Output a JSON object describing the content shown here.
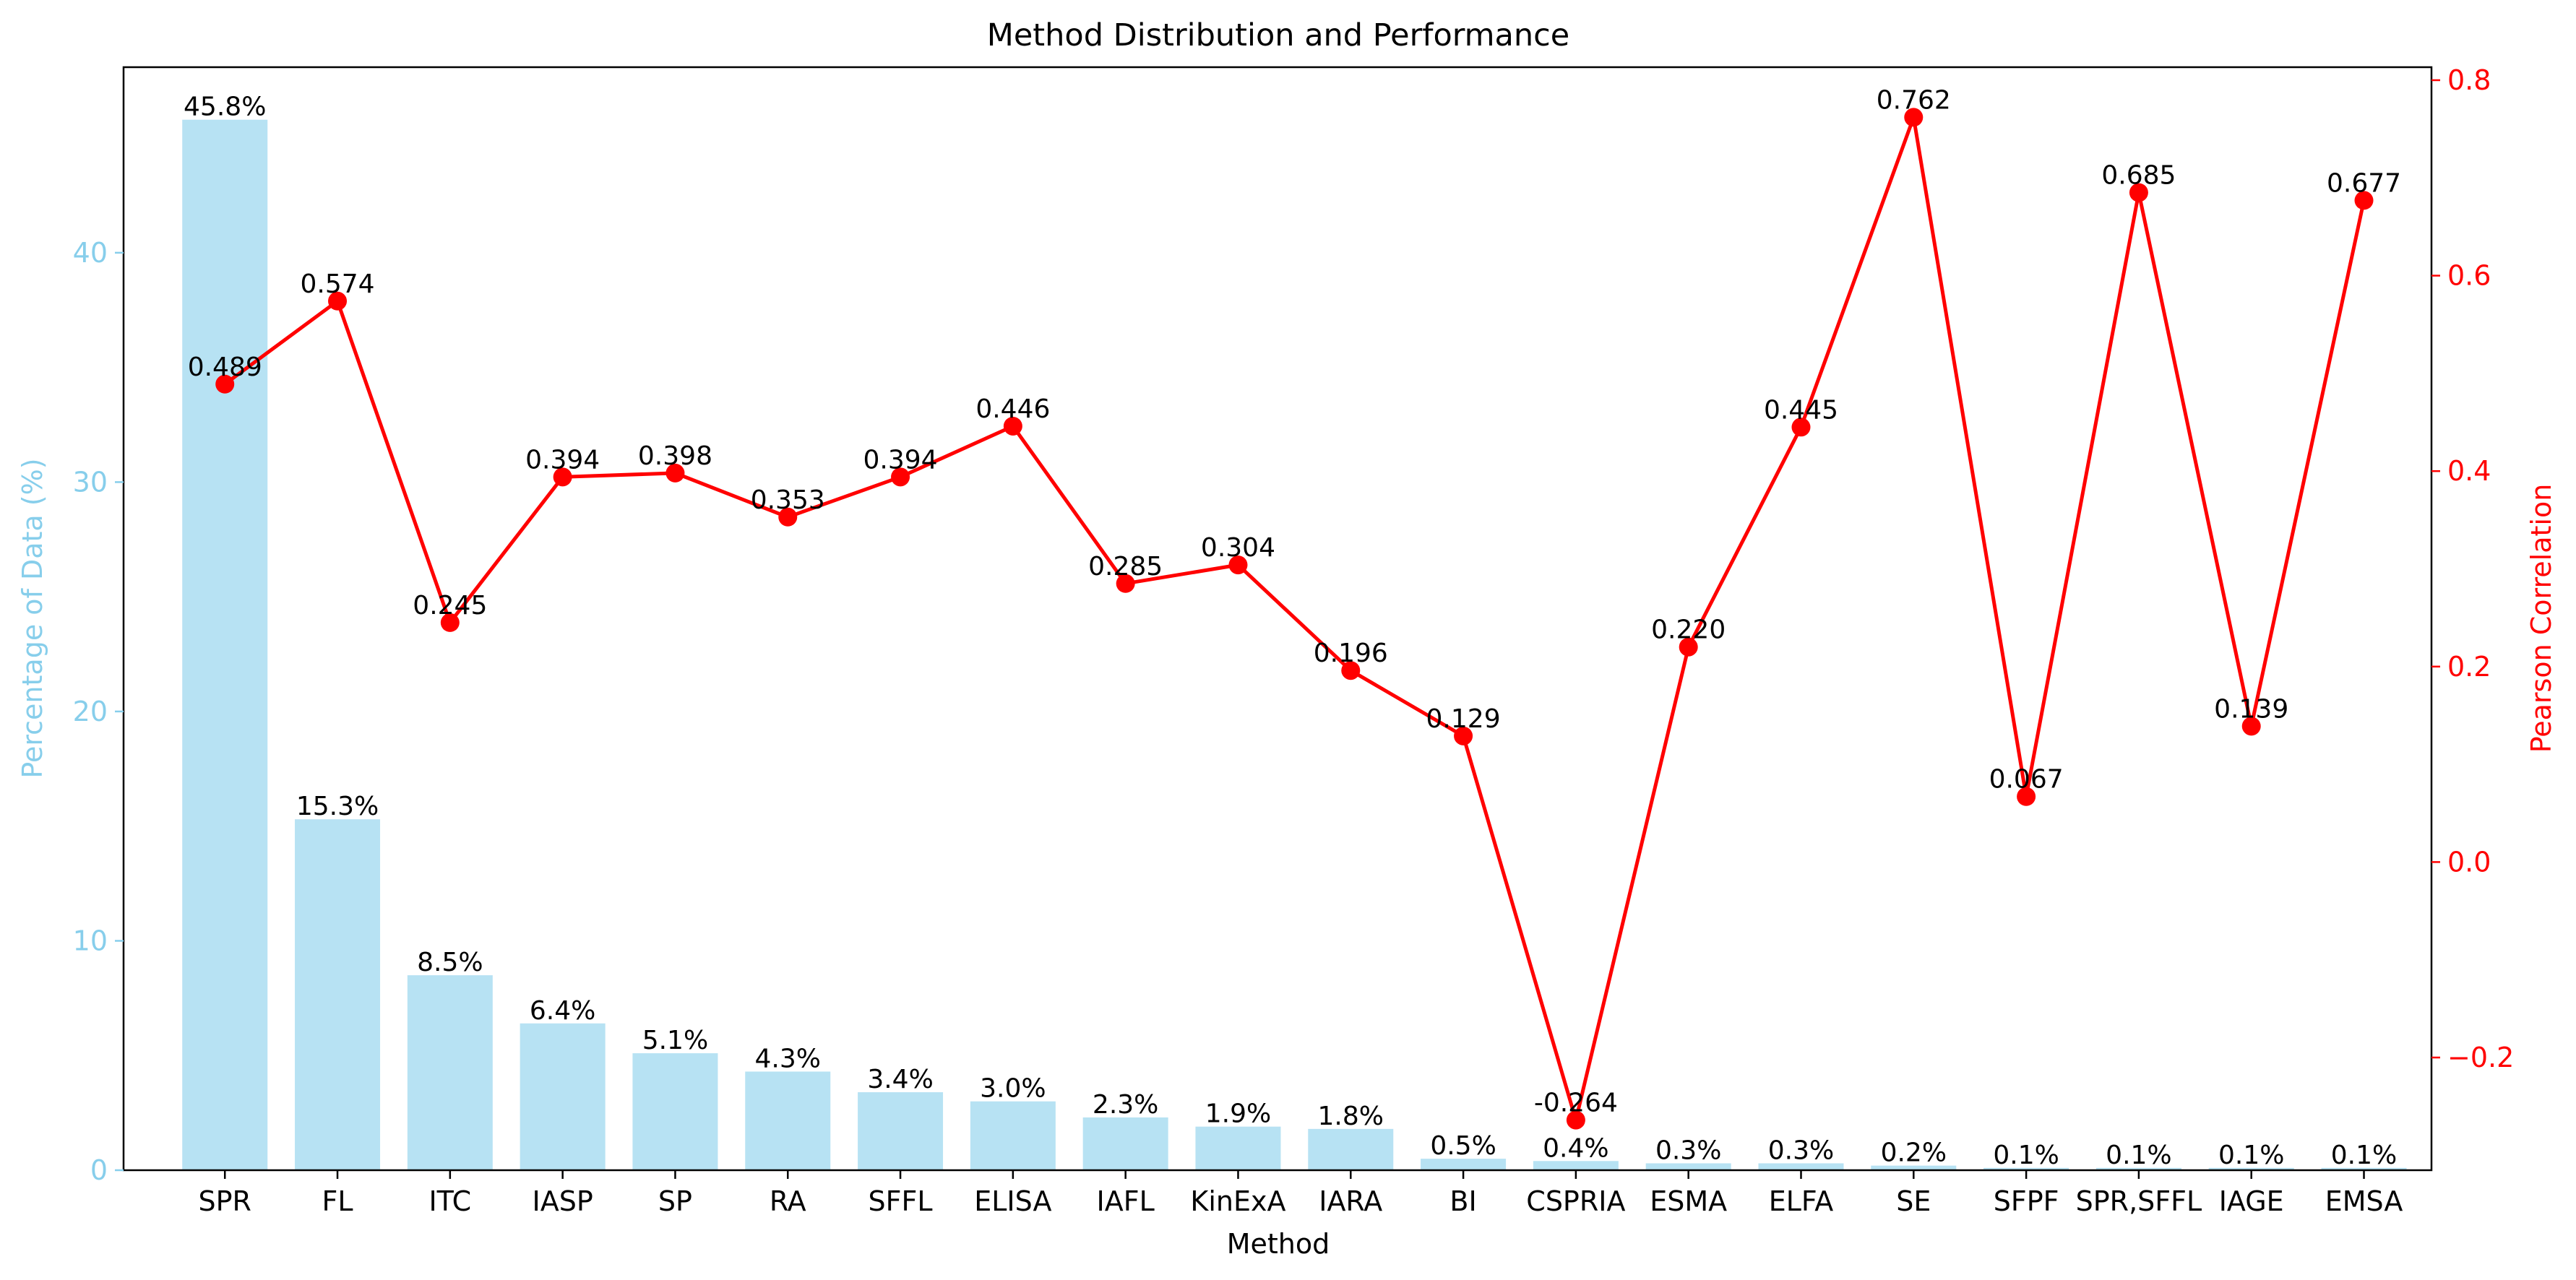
{
  "chart_data": {
    "type": "bar",
    "title": "Method Distribution and Performance",
    "xlabel": "Method",
    "categories": [
      "SPR",
      "FL",
      "ITC",
      "IASP",
      "SP",
      "RA",
      "SFFL",
      "ELISA",
      "IAFL",
      "KinExA",
      "IARA",
      "BI",
      "CSPRIA",
      "ESMA",
      "ELFA",
      "SE",
      "SFPF",
      "SPR,SFFL",
      "IAGE",
      "EMSA"
    ],
    "series": [
      {
        "type": "bar",
        "axis": "left",
        "color": "#87CEEB",
        "values": [
          45.8,
          15.3,
          8.5,
          6.4,
          5.1,
          4.3,
          3.4,
          3.0,
          2.3,
          1.9,
          1.8,
          0.5,
          0.4,
          0.3,
          0.3,
          0.2,
          0.1,
          0.1,
          0.1,
          0.1
        ],
        "labels": [
          "45.8%",
          "15.3%",
          "8.5%",
          "6.4%",
          "5.1%",
          "4.3%",
          "3.4%",
          "3.0%",
          "2.3%",
          "1.9%",
          "1.8%",
          "0.5%",
          "0.4%",
          "0.3%",
          "0.3%",
          "0.2%",
          "0.1%",
          "0.1%",
          "0.1%",
          "0.1%"
        ]
      },
      {
        "type": "line",
        "axis": "right",
        "color": "#FF0000",
        "values": [
          0.489,
          0.574,
          0.245,
          0.394,
          0.398,
          0.353,
          0.394,
          0.446,
          0.285,
          0.304,
          0.196,
          0.129,
          -0.264,
          0.22,
          0.445,
          0.762,
          0.067,
          0.685,
          0.139,
          0.677
        ],
        "labels": [
          "0.489",
          "0.574",
          "0.245",
          "0.394",
          "0.398",
          "0.353",
          "0.394",
          "0.446",
          "0.285",
          "0.304",
          "0.196",
          "0.129",
          "-0.264",
          "0.220",
          "0.445",
          "0.762",
          "0.067",
          "0.685",
          "0.139",
          "0.677"
        ]
      }
    ],
    "y_left": {
      "label": "Percentage of Data (%)",
      "color": "#87CEEB",
      "lim": [
        0,
        48.09
      ],
      "ticks": [
        0,
        10,
        20,
        30,
        40
      ],
      "tick_labels": [
        "0",
        "10",
        "20",
        "30",
        "40"
      ]
    },
    "y_right": {
      "label": "Pearson Correlation",
      "color": "#FF0000",
      "lim": [
        -0.3153,
        0.8133
      ],
      "ticks": [
        -0.2,
        0.0,
        0.2,
        0.4,
        0.6,
        0.8
      ],
      "tick_labels": [
        "−0.2",
        "0.0",
        "0.2",
        "0.4",
        "0.6",
        "0.8"
      ]
    },
    "x_range": [
      -0.9,
      19.6
    ],
    "grid": false,
    "legend": "none"
  }
}
